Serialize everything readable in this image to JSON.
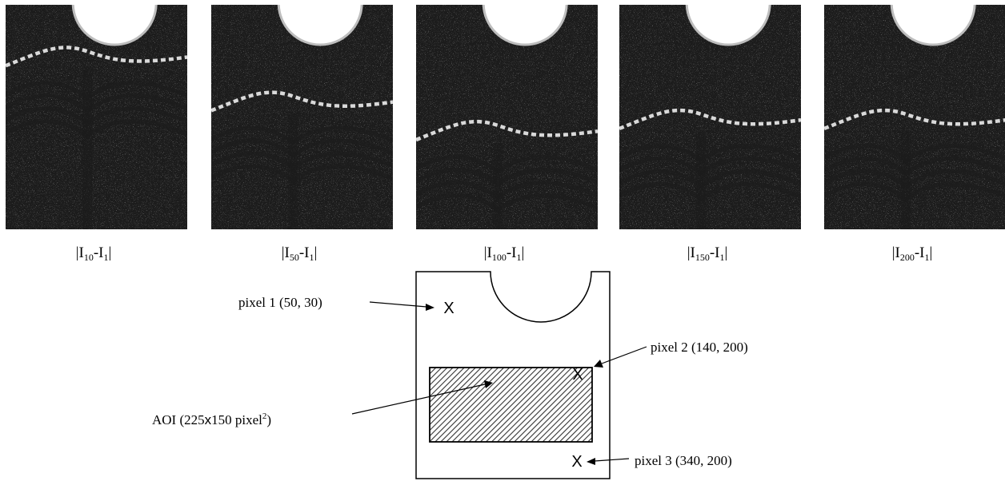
{
  "frames": [
    {
      "caption_prefix": "|I",
      "frame_subscript": "10",
      "mid": "-I",
      "ref_subscript": "1",
      "caption_suffix": "|",
      "front_level": 0.25
    },
    {
      "caption_prefix": "|I",
      "frame_subscript": "50",
      "mid": "-I",
      "ref_subscript": "1",
      "caption_suffix": "|",
      "front_level": 0.45
    },
    {
      "caption_prefix": "|I",
      "frame_subscript": "100",
      "mid": "-I",
      "ref_subscript": "1",
      "caption_suffix": "|",
      "front_level": 0.58
    },
    {
      "caption_prefix": "|I",
      "frame_subscript": "150",
      "mid": "-I",
      "ref_subscript": "1",
      "caption_suffix": "|",
      "front_level": 0.53
    },
    {
      "caption_prefix": "|I",
      "frame_subscript": "200",
      "mid": "-I",
      "ref_subscript": "1",
      "caption_suffix": "|",
      "front_level": 0.53
    }
  ],
  "diagram": {
    "pixel1_label": "pixel 1 (50, 30)",
    "pixel2_label": "pixel 2 (140, 200)",
    "pixel3_label": "pixel 3 (340, 200)",
    "aoi_label_main": "AOI (225",
    "aoi_label_times": "x",
    "aoi_label_rest": "150 pixel",
    "aoi_label_sup": "2",
    "aoi_label_close": ")",
    "marker_symbol": "X"
  },
  "colors": {
    "background": "#ffffff",
    "speckle_dark": "#1c1c1c",
    "speckle_bright": "#ffffff",
    "front_line": "#d9d9d9",
    "notch_fill": "#ffffff",
    "notch_edge": "#bdbdbd",
    "ink": "#000000"
  }
}
